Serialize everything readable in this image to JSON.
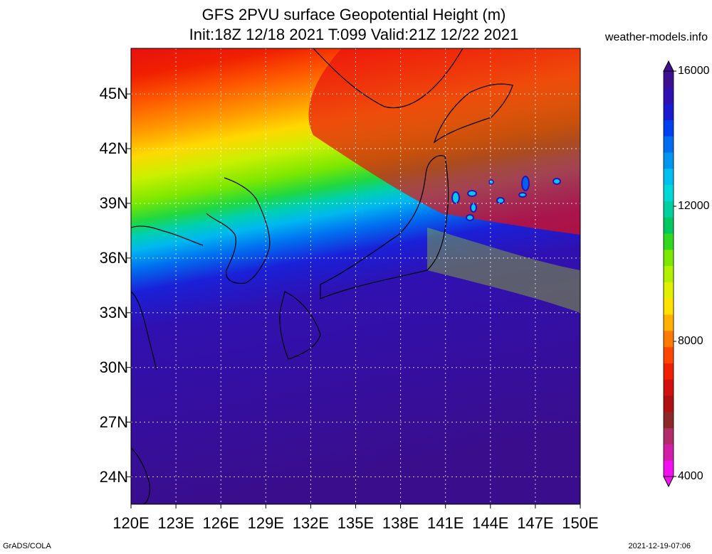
{
  "header": {
    "title_line1": "GFS 2PVU surface Geopotential Height (m)",
    "title_line2": "Init:18Z 12/18 2021 T:099 Valid:21Z 12/22 2021",
    "source": "weather-models.info"
  },
  "footer": {
    "left": "GrADS/COLA",
    "right": "2021-12-19-07:06"
  },
  "map": {
    "lat_labels": [
      "45N",
      "42N",
      "39N",
      "36N",
      "33N",
      "30N",
      "27N",
      "24N"
    ],
    "lat_values": [
      45,
      42,
      39,
      36,
      33,
      30,
      27,
      24
    ],
    "lon_labels": [
      "120E",
      "123E",
      "126E",
      "129E",
      "132E",
      "135E",
      "138E",
      "141E",
      "144E",
      "147E",
      "150E"
    ],
    "lon_values": [
      120,
      123,
      126,
      129,
      132,
      135,
      138,
      141,
      144,
      147,
      150
    ],
    "lat_range": [
      22.5,
      47.5
    ],
    "lon_range": [
      120,
      150
    ]
  },
  "colorbar": {
    "labels": [
      "16000",
      "12000",
      "8000",
      "4000"
    ],
    "label_values": [
      16000,
      12000,
      8000,
      4000
    ],
    "min": 4000,
    "max": 16000,
    "colors": [
      "#f40ff0",
      "#d31ea8",
      "#b12d6a",
      "#8c2828",
      "#b01010",
      "#d21010",
      "#f02000",
      "#ff4500",
      "#ff7a00",
      "#ffb000",
      "#ffe000",
      "#e0f000",
      "#b0f000",
      "#7ce800",
      "#30d820",
      "#00c860",
      "#00d0a0",
      "#00d8d8",
      "#00c0f0",
      "#0096f0",
      "#006cf0",
      "#0040f0",
      "#1a1ad0",
      "#3010b0",
      "#3c1090"
    ]
  }
}
